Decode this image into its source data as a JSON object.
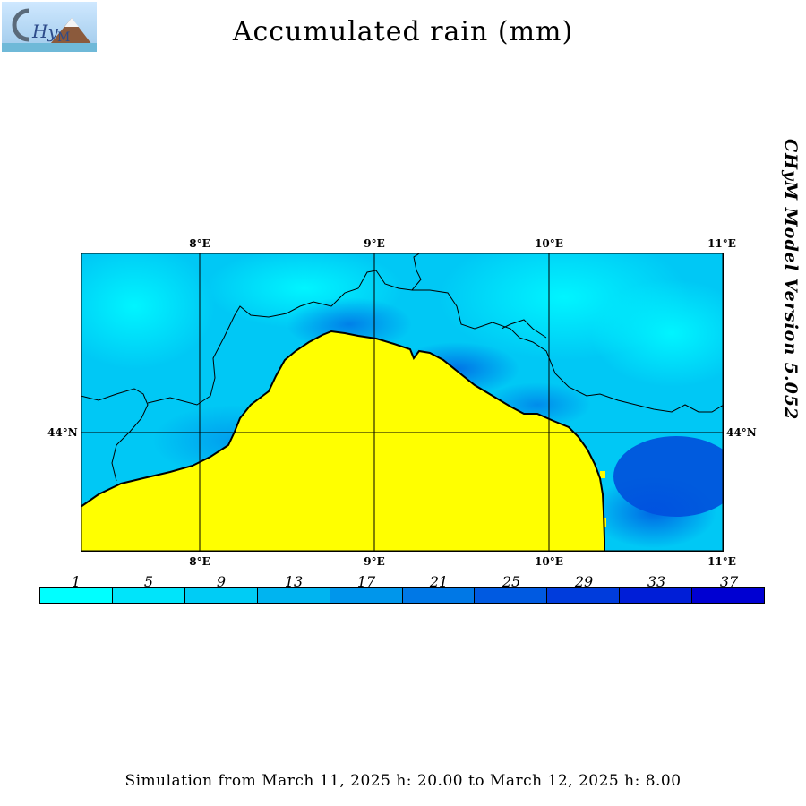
{
  "header": {
    "title": "Accumulated rain (mm)",
    "logo_text": "CHyM"
  },
  "side_label": "CHyM Model Version 5.052",
  "map": {
    "longitude_labels": [
      "8°E",
      "9°E",
      "10°E",
      "11°E"
    ],
    "latitude_labels": [
      "44°N"
    ],
    "sea_color": "#ffff00",
    "border_color": "#000000"
  },
  "legend": {
    "values": [
      "1",
      "5",
      "9",
      "13",
      "17",
      "21",
      "25",
      "29",
      "33",
      "37"
    ],
    "colors": [
      "#00ffff",
      "#00e4fa",
      "#00ccf5",
      "#00b4f0",
      "#0096eb",
      "#0078e6",
      "#005ae1",
      "#003cdc",
      "#001ed7",
      "#0000d2"
    ]
  },
  "footer": {
    "simulation_text": "Simulation from March 11, 2025 h: 20.00 to March 12, 2025 h: 8.00"
  }
}
